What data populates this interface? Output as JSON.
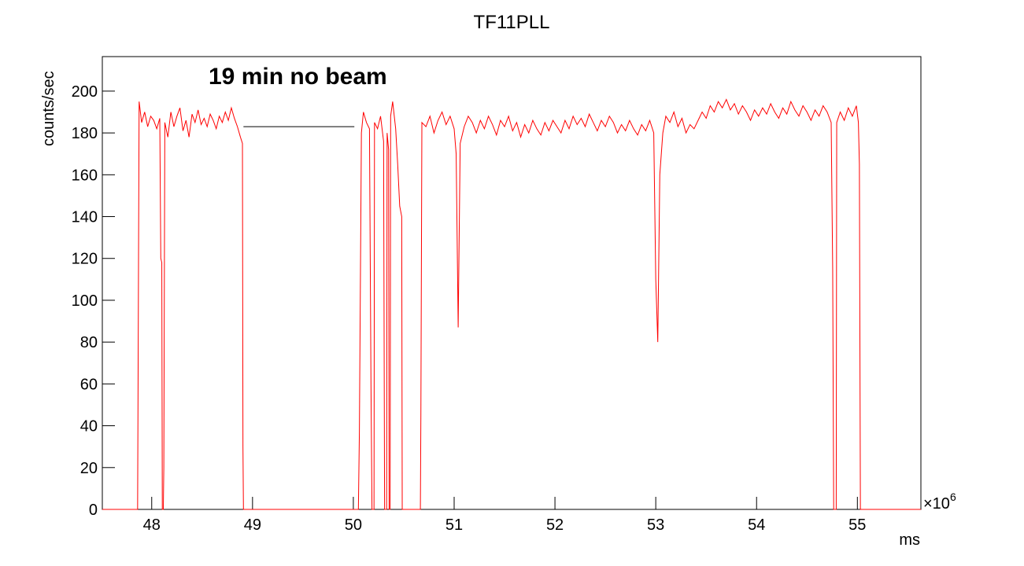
{
  "chart_data": {
    "type": "line",
    "title": "TF11PLL",
    "ylabel": "counts/sec",
    "xlabel": "ms",
    "x_multiplier": {
      "base": "×10",
      "exponent": "6"
    },
    "annotation": "19 min no beam",
    "annotation_line": {
      "x": [
        48.91,
        50.01
      ],
      "y": [
        183,
        183
      ],
      "color": "#000000"
    },
    "xlim": [
      47.51,
      55.63
    ],
    "ylim": [
      0,
      216.5
    ],
    "xticks": [
      48,
      49,
      50,
      51,
      52,
      53,
      54,
      55
    ],
    "yticks": [
      0,
      20,
      40,
      60,
      80,
      100,
      120,
      140,
      160,
      180,
      200
    ],
    "series": [
      {
        "name": "TF11PLL",
        "color": "#ff0000",
        "x": [
          47.51,
          47.86,
          47.865,
          47.875,
          47.9,
          47.93,
          47.96,
          47.99,
          48.02,
          48.05,
          48.08,
          48.09,
          48.1,
          48.105,
          48.115,
          48.12,
          48.13,
          48.16,
          48.19,
          48.22,
          48.25,
          48.28,
          48.31,
          48.34,
          48.37,
          48.4,
          48.43,
          48.46,
          48.49,
          48.52,
          48.55,
          48.58,
          48.61,
          48.64,
          48.67,
          48.7,
          48.73,
          48.76,
          48.79,
          48.82,
          48.85,
          48.88,
          48.9,
          48.905,
          48.91,
          50.05,
          50.06,
          50.08,
          50.1,
          50.13,
          50.16,
          50.175,
          50.185,
          50.205,
          50.21,
          50.24,
          50.27,
          50.3,
          50.31,
          50.33,
          50.335,
          50.35,
          50.355,
          50.365,
          50.37,
          50.39,
          50.42,
          50.44,
          50.46,
          50.48,
          50.485,
          50.665,
          50.67,
          50.68,
          50.72,
          50.76,
          50.8,
          50.84,
          50.88,
          50.92,
          50.96,
          51.0,
          51.02,
          51.04,
          51.06,
          51.1,
          51.14,
          51.18,
          51.22,
          51.26,
          51.3,
          51.34,
          51.38,
          51.42,
          51.46,
          51.5,
          51.54,
          51.58,
          51.62,
          51.66,
          51.7,
          51.74,
          51.78,
          51.82,
          51.86,
          51.9,
          51.94,
          51.98,
          52.02,
          52.06,
          52.1,
          52.14,
          52.18,
          52.22,
          52.26,
          52.3,
          52.34,
          52.38,
          52.42,
          52.46,
          52.5,
          52.54,
          52.58,
          52.62,
          52.66,
          52.7,
          52.74,
          52.78,
          52.82,
          52.86,
          52.9,
          52.94,
          52.98,
          53.0,
          53.02,
          53.04,
          53.07,
          53.1,
          53.14,
          53.18,
          53.22,
          53.26,
          53.3,
          53.34,
          53.38,
          53.42,
          53.46,
          53.5,
          53.54,
          53.58,
          53.62,
          53.66,
          53.7,
          53.74,
          53.78,
          53.82,
          53.86,
          53.9,
          53.94,
          53.98,
          54.02,
          54.06,
          54.1,
          54.14,
          54.18,
          54.22,
          54.26,
          54.3,
          54.34,
          54.38,
          54.42,
          54.46,
          54.5,
          54.54,
          54.58,
          54.62,
          54.66,
          54.7,
          54.74,
          54.755,
          54.765,
          54.79,
          54.795,
          54.83,
          54.87,
          54.91,
          54.95,
          54.99,
          55.01,
          55.02,
          55.03,
          55.63
        ],
        "values": [
          0,
          0,
          65,
          195,
          185,
          190,
          183,
          188,
          186,
          182,
          187,
          120,
          118,
          0,
          0,
          20,
          185,
          178,
          190,
          183,
          188,
          192,
          181,
          186,
          178,
          189,
          185,
          191,
          184,
          187,
          183,
          189,
          186,
          182,
          188,
          185,
          190,
          186,
          192,
          187,
          183,
          178,
          175,
          30,
          0,
          0,
          37,
          180,
          190,
          185,
          182,
          60,
          0,
          0,
          185,
          182,
          188,
          176,
          0,
          0,
          180,
          172,
          0,
          0,
          188,
          195,
          182,
          165,
          145,
          140,
          0,
          0,
          45,
          185,
          183,
          188,
          180,
          186,
          190,
          184,
          188,
          182,
          170,
          87,
          175,
          183,
          188,
          185,
          180,
          186,
          182,
          188,
          184,
          179,
          186,
          183,
          188,
          181,
          185,
          178,
          184,
          180,
          186,
          182,
          179,
          185,
          181,
          186,
          183,
          180,
          186,
          182,
          188,
          184,
          187,
          183,
          189,
          185,
          181,
          186,
          183,
          188,
          185,
          180,
          184,
          181,
          186,
          182,
          179,
          184,
          181,
          186,
          180,
          110,
          80,
          160,
          180,
          188,
          185,
          190,
          183,
          187,
          180,
          184,
          182,
          186,
          190,
          187,
          193,
          190,
          195,
          192,
          196,
          191,
          194,
          189,
          193,
          190,
          186,
          191,
          188,
          192,
          189,
          194,
          190,
          187,
          192,
          189,
          195,
          191,
          188,
          193,
          190,
          186,
          191,
          188,
          193,
          190,
          185,
          115,
          0,
          0,
          185,
          190,
          186,
          192,
          188,
          193,
          185,
          165,
          0,
          0
        ]
      }
    ]
  }
}
